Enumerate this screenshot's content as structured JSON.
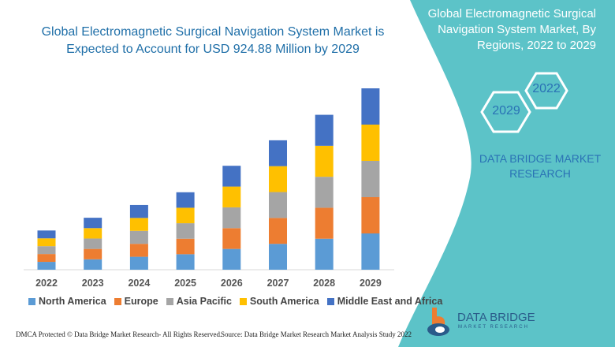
{
  "header": {
    "title": "Global Electromagnetic Surgical Navigation System Market is Expected to Account for USD 924.88 Million by 2029"
  },
  "side_panel": {
    "title": "Global Electromagnetic Surgical Navigation System Market, By Regions, 2022 to 2029",
    "hex_1": "2022",
    "hex_2": "2029",
    "brand": "DATA BRIDGE MARKET RESEARCH",
    "logo_text": "DATA BRIDGE",
    "logo_sub": "MARKET RESEARCH",
    "color": "#5cc3c8"
  },
  "footer": {
    "copyright": "DMCA Protected © Data Bridge Market Research- All Rights Reserved.",
    "source": "Source: Data Bridge Market Research Market Analysis Study 2022"
  },
  "chart_data": {
    "type": "bar",
    "stacked": true,
    "categories": [
      "2022",
      "2023",
      "2024",
      "2025",
      "2026",
      "2027",
      "2028",
      "2029"
    ],
    "series": [
      {
        "name": "North America",
        "color": "#5b9bd5",
        "values": [
          40,
          53,
          66,
          79,
          106,
          132,
          158,
          185
        ]
      },
      {
        "name": "Europe",
        "color": "#ed7d31",
        "values": [
          40,
          53,
          66,
          79,
          106,
          132,
          158,
          185
        ]
      },
      {
        "name": "Asia Pacific",
        "color": "#a5a5a5",
        "values": [
          40,
          53,
          66,
          79,
          106,
          132,
          158,
          185
        ]
      },
      {
        "name": "South America",
        "color": "#ffc000",
        "values": [
          40,
          53,
          66,
          79,
          106,
          132,
          158,
          185
        ]
      },
      {
        "name": "Middle East and Africa",
        "color": "#4472c4",
        "values": [
          40,
          53,
          66,
          79,
          106,
          132,
          158,
          185
        ]
      }
    ],
    "ylim": [
      0,
      925
    ],
    "grid": false,
    "legend": "bottom"
  }
}
